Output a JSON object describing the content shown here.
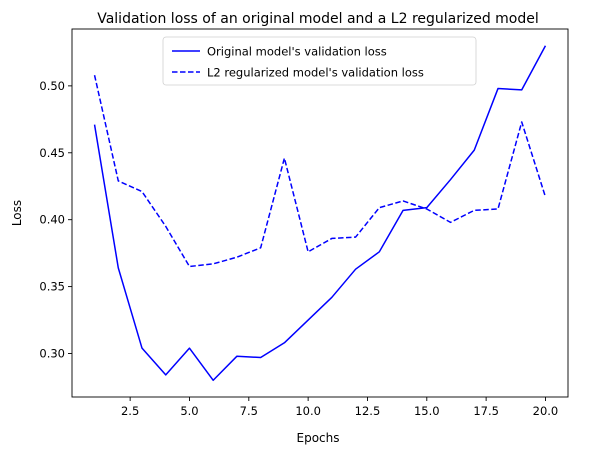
{
  "chart_data": {
    "type": "line",
    "title": "Validation loss of an original model and a L2 regularized model",
    "xlabel": "Epochs",
    "ylabel": "Loss",
    "xlim": [
      0.05,
      20.95
    ],
    "ylim": [
      0.2675,
      0.5425
    ],
    "x_ticks": [
      2.5,
      5.0,
      7.5,
      10.0,
      12.5,
      15.0,
      17.5,
      20.0
    ],
    "x_tick_labels": [
      "2.5",
      "5.0",
      "7.5",
      "10.0",
      "12.5",
      "15.0",
      "17.5",
      "20.0"
    ],
    "y_ticks": [
      0.3,
      0.35,
      0.4,
      0.45,
      0.5
    ],
    "y_tick_labels": [
      "0.30",
      "0.35",
      "0.40",
      "0.45",
      "0.50"
    ],
    "legend_position": "upper-center",
    "grid": false,
    "x": [
      1,
      2,
      3,
      4,
      5,
      6,
      7,
      8,
      9,
      10,
      11,
      12,
      13,
      14,
      15,
      16,
      17,
      18,
      19,
      20
    ],
    "series": [
      {
        "name": "Original model's validation loss",
        "style": "solid",
        "color": "#0000ff",
        "values": [
          0.471,
          0.364,
          0.304,
          0.284,
          0.304,
          0.28,
          0.298,
          0.297,
          0.308,
          0.325,
          0.342,
          0.363,
          0.376,
          0.407,
          0.409,
          0.43,
          0.452,
          0.498,
          0.497,
          0.53
        ]
      },
      {
        "name": "L2 regularized model's validation loss",
        "style": "dashed",
        "color": "#0000ff",
        "values": [
          0.508,
          0.429,
          0.421,
          0.395,
          0.365,
          0.367,
          0.372,
          0.379,
          0.446,
          0.376,
          0.386,
          0.387,
          0.409,
          0.414,
          0.408,
          0.398,
          0.407,
          0.408,
          0.473,
          0.417
        ]
      }
    ]
  }
}
